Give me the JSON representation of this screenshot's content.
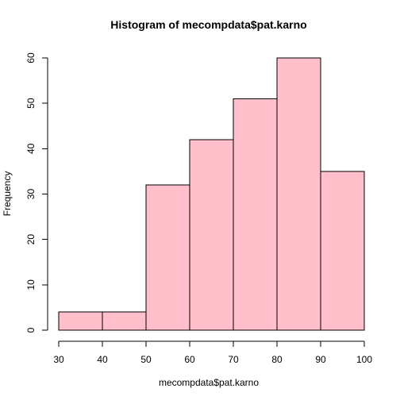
{
  "chart_data": {
    "type": "bar",
    "title": "Histogram of mecompdata$pat.karno",
    "xlabel": "mecompdata$pat.karno",
    "ylabel": "Frequency",
    "bins": [
      {
        "start": 30,
        "end": 40,
        "count": 4
      },
      {
        "start": 40,
        "end": 50,
        "count": 4
      },
      {
        "start": 50,
        "end": 60,
        "count": 32
      },
      {
        "start": 60,
        "end": 70,
        "count": 42
      },
      {
        "start": 70,
        "end": 80,
        "count": 51
      },
      {
        "start": 80,
        "end": 90,
        "count": 60
      },
      {
        "start": 90,
        "end": 100,
        "count": 35
      }
    ],
    "xlim": [
      30,
      100
    ],
    "ylim": [
      0,
      60
    ],
    "x_ticks": [
      30,
      40,
      50,
      60,
      70,
      80,
      90,
      100
    ],
    "y_ticks": [
      0,
      10,
      20,
      30,
      40,
      50,
      60
    ],
    "grid": false,
    "bar_color": "#ffc0cb",
    "bar_border_color": "#000000"
  }
}
